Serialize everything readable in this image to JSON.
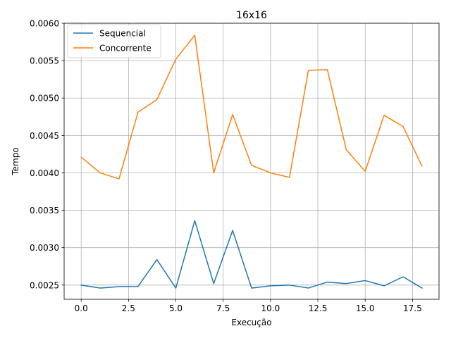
{
  "chart_data": {
    "type": "line",
    "title": "16x16",
    "xlabel": "Execução",
    "ylabel": "Tempo",
    "xlim": [
      -0.9,
      18.9
    ],
    "ylim": [
      0.00231,
      0.006
    ],
    "xticks": [
      0.0,
      2.5,
      5.0,
      7.5,
      10.0,
      12.5,
      15.0,
      17.5
    ],
    "xtick_labels": [
      "0.0",
      "2.5",
      "5.0",
      "7.5",
      "10.0",
      "12.5",
      "15.0",
      "17.5"
    ],
    "yticks": [
      0.0025,
      0.003,
      0.0035,
      0.004,
      0.0045,
      0.005,
      0.0055,
      0.006
    ],
    "ytick_labels": [
      "0.0025",
      "0.0030",
      "0.0035",
      "0.0040",
      "0.0045",
      "0.0050",
      "0.0055",
      "0.0060"
    ],
    "grid": true,
    "legend_position": "top-left",
    "x": [
      0,
      1,
      2,
      3,
      4,
      5,
      6,
      7,
      8,
      9,
      10,
      11,
      12,
      13,
      14,
      15,
      16,
      17,
      18
    ],
    "series": [
      {
        "name": "Sequencial",
        "color": "#1f77b4",
        "values": [
          0.0025,
          0.00246,
          0.00248,
          0.00248,
          0.00284,
          0.00246,
          0.00336,
          0.00252,
          0.00323,
          0.00246,
          0.00249,
          0.0025,
          0.00246,
          0.00254,
          0.00252,
          0.00256,
          0.00249,
          0.00261,
          0.00246
        ]
      },
      {
        "name": "Concorrente",
        "color": "#ff7f0e",
        "values": [
          0.00421,
          0.004,
          0.00392,
          0.00481,
          0.00498,
          0.00552,
          0.00584,
          0.004,
          0.00478,
          0.0041,
          0.004,
          0.00394,
          0.00537,
          0.00538,
          0.00431,
          0.00402,
          0.00477,
          0.00462,
          0.00409
        ]
      }
    ]
  }
}
